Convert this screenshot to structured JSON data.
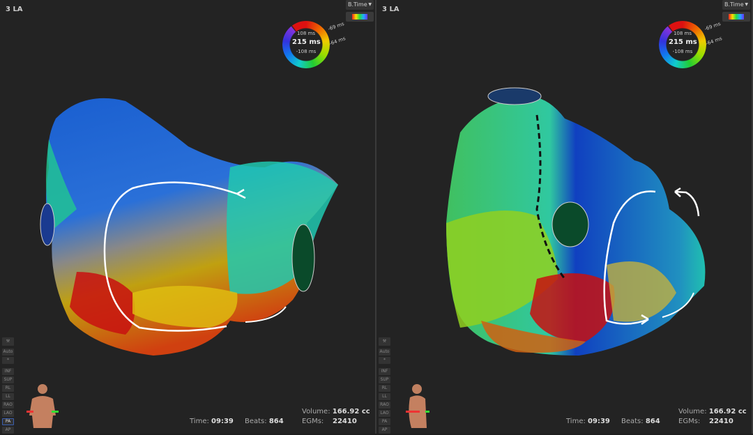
{
  "panels": [
    {
      "title": "3 LA",
      "map_type": "B.Time",
      "legend": {
        "upper": "108 ms",
        "center": "215 ms",
        "lower": "-108 ms",
        "window_top": "-69 ms",
        "window_bottom": "-64 ms"
      },
      "view_buttons": [
        "Auto",
        "*",
        "INF",
        "SUP",
        "RL",
        "LL",
        "RAO",
        "LAO",
        "PA",
        "AP"
      ],
      "selected_view": "PA",
      "stats": {
        "time_label": "Time:",
        "time": "09:39",
        "beats_label": "Beats:",
        "beats": "864",
        "volume_label": "Volume:",
        "volume": "166.92 cc",
        "egms_label": "EGMs:",
        "egms": "22410"
      }
    },
    {
      "title": "3 LA",
      "map_type": "B.Time",
      "legend": {
        "upper": "108 ms",
        "center": "215 ms",
        "lower": "-108 ms",
        "window_top": "-69 ms",
        "window_bottom": "-64 ms"
      },
      "view_buttons": [
        "Auto",
        "*",
        "INF",
        "SUP",
        "RL",
        "LL",
        "RAO",
        "LAO",
        "PA",
        "AP"
      ],
      "selected_view": "",
      "stats": {
        "time_label": "Time:",
        "time": "09:39",
        "beats_label": "Beats:",
        "beats": "864",
        "volume_label": "Volume:",
        "volume": "166.92 cc",
        "egms_label": "EGMs:",
        "egms": "22410"
      }
    }
  ],
  "icons": [
    "hammer-icon",
    "torso-orientation-icon",
    "color-lut-icon",
    "chevron-down-icon"
  ]
}
